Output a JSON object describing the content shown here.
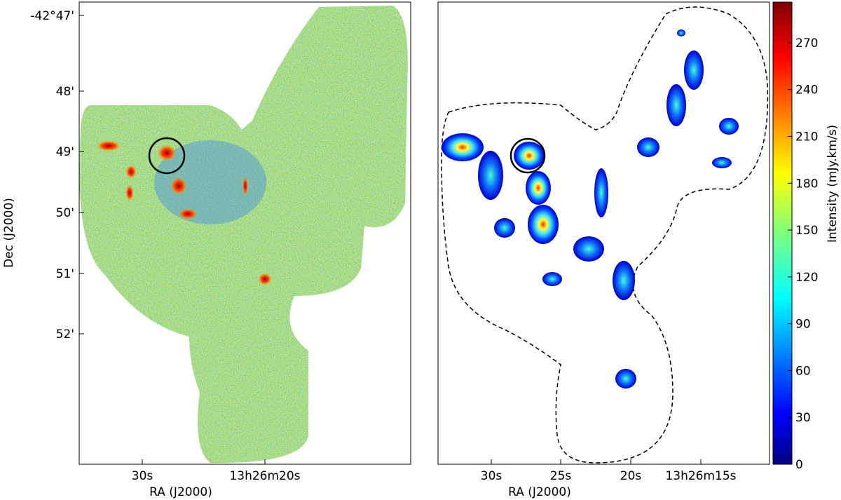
{
  "left_panel": {
    "xlabel": "RA (J2000)",
    "ylabel": "Dec (J2000)",
    "xticks": [
      "30s",
      "13h26m20s"
    ],
    "yticks": [
      "-42°47'",
      "48'",
      "49'",
      "50'",
      "51'",
      "52'"
    ]
  },
  "right_panel": {
    "xlabel": "RA (J2000)",
    "xticks": [
      "30s",
      "25s",
      "20s",
      "13h26m15s"
    ]
  },
  "colorbar": {
    "label": "Intensity (mJy.km/s)",
    "lim": [
      0,
      296
    ],
    "ticks": [
      0,
      30,
      60,
      90,
      120,
      150,
      180,
      210,
      240,
      270
    ]
  }
}
